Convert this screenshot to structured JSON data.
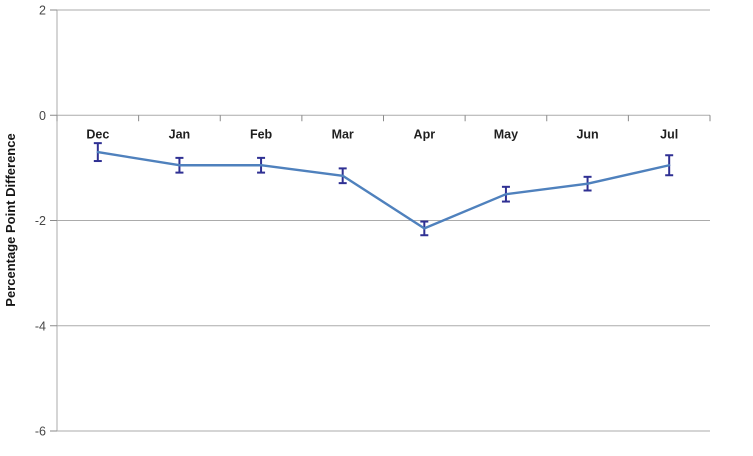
{
  "chart_data": {
    "type": "line",
    "title": "",
    "categories": [
      "Dec",
      "Jan",
      "Feb",
      "Mar",
      "Apr",
      "May",
      "Jun",
      "Jul"
    ],
    "values": [
      -0.7,
      -0.95,
      -0.95,
      -1.15,
      -2.15,
      -1.5,
      -1.3,
      -0.95
    ],
    "errors": [
      0.17,
      0.14,
      0.14,
      0.14,
      0.13,
      0.14,
      0.13,
      0.19
    ],
    "xlabel": "",
    "ylabel": "Percentage Point Difference",
    "ylim": [
      -6,
      2
    ],
    "yticks": [
      2,
      0,
      -2,
      -4,
      -6
    ],
    "grid": "horizontal",
    "legend": "none",
    "category_labels_position": "at-zero-axis",
    "style": {
      "line_color": "#4F81BD",
      "error_bar_color": "#2F3093",
      "gridline_color": "#ABABAB",
      "axis_color": "#8A8A8A",
      "background_color": "#FFFFFF"
    }
  }
}
